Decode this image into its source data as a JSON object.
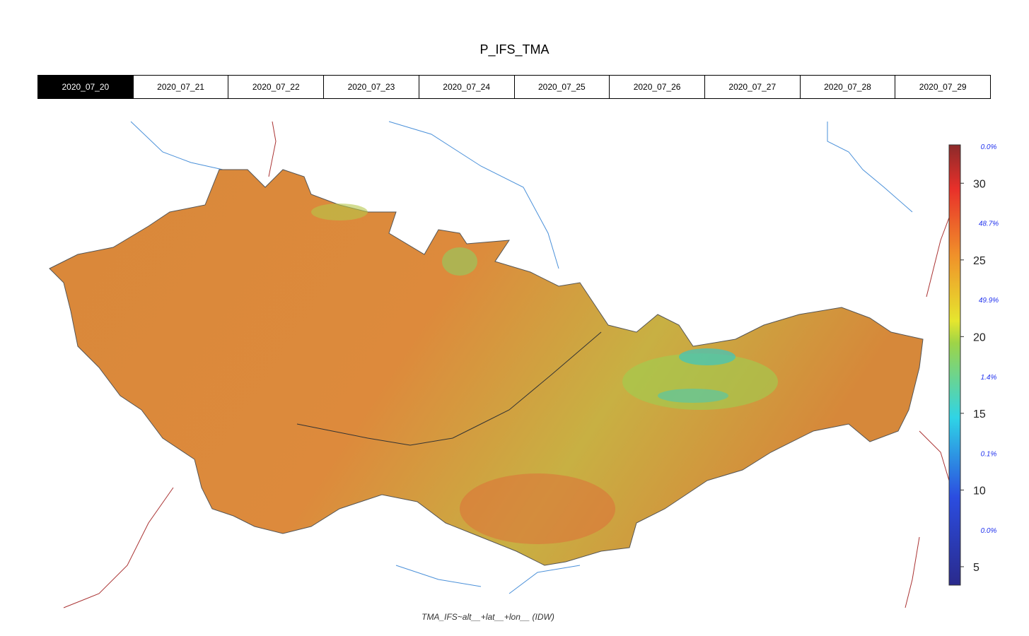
{
  "header": {
    "title": "P_IFS_TMA"
  },
  "tabs": {
    "labels": [
      "2020_07_20",
      "2020_07_21",
      "2020_07_22",
      "2020_07_23",
      "2020_07_24",
      "2020_07_25",
      "2020_07_26",
      "2020_07_27",
      "2020_07_28",
      "2020_07_29"
    ],
    "active": 0
  },
  "colorbar": {
    "lim": [
      3.8,
      32.5
    ],
    "ticks": [
      5,
      10,
      15,
      20,
      25,
      30
    ],
    "shares": [
      {
        "value": 0.0,
        "label": "0.0%"
      },
      {
        "value": 48.7,
        "label": "48.7%"
      },
      {
        "value": 49.9,
        "label": "49.9%"
      },
      {
        "value": 1.4,
        "label": "1.4%"
      },
      {
        "value": 0.1,
        "label": "0.1%"
      },
      {
        "value": 0.0,
        "label": "0.0%"
      }
    ]
  },
  "caption": "TMA_IFS~alt__+lat__+lon__ (IDW)"
}
